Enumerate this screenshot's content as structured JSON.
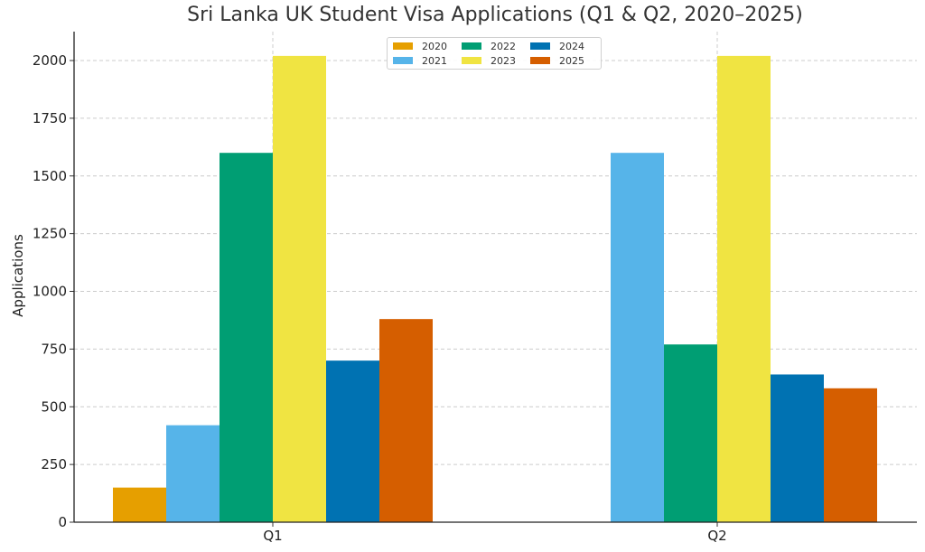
{
  "chart_data": {
    "type": "bar",
    "title": "Sri Lanka UK Student Visa Applications (Q1 & Q2, 2020–2025)",
    "xlabel": "",
    "ylabel": "Applications",
    "categories": [
      "Q1",
      "Q2"
    ],
    "series": [
      {
        "name": "2020",
        "color": "#E69F00",
        "values": [
          150,
          0
        ]
      },
      {
        "name": "2021",
        "color": "#56B4E9",
        "values": [
          420,
          1600
        ]
      },
      {
        "name": "2022",
        "color": "#009E73",
        "values": [
          1600,
          770
        ]
      },
      {
        "name": "2023",
        "color": "#F0E442",
        "values": [
          2020,
          2020
        ]
      },
      {
        "name": "2024",
        "color": "#0072B2",
        "values": [
          700,
          640
        ]
      },
      {
        "name": "2025",
        "color": "#D55E00",
        "values": [
          880,
          580
        ]
      }
    ],
    "ylim": [
      0,
      2125
    ],
    "yticks": [
      0,
      250,
      500,
      750,
      1000,
      1250,
      1500,
      1750,
      2000
    ],
    "grid": true,
    "legend_position": "upper center"
  }
}
